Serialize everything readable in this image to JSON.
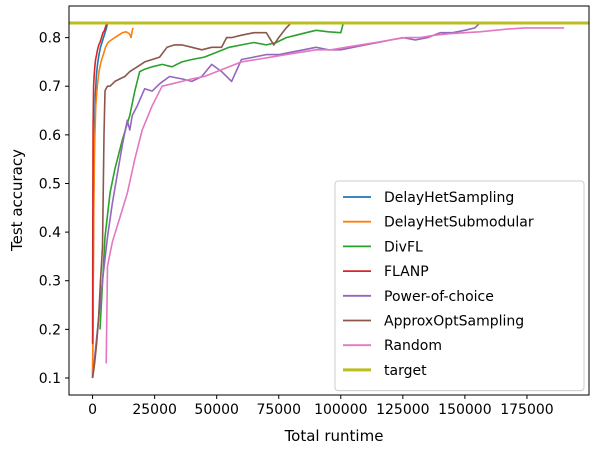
{
  "chart_data": {
    "type": "line",
    "xlabel": "Total runtime",
    "ylabel": "Test accuracy",
    "xlim": [
      -9500,
      200000
    ],
    "ylim": [
      0.065,
      0.865
    ],
    "x_ticks": [
      0,
      25000,
      50000,
      75000,
      100000,
      125000,
      150000,
      175000
    ],
    "x_tick_labels": [
      "0",
      "25000",
      "50000",
      "75000",
      "100000",
      "125000",
      "150000",
      "175000"
    ],
    "y_ticks": [
      0.1,
      0.2,
      0.3,
      0.4,
      0.5,
      0.6,
      0.7,
      0.8
    ],
    "y_tick_labels": [
      "0.1",
      "0.2",
      "0.3",
      "0.4",
      "0.5",
      "0.6",
      "0.7",
      "0.8"
    ],
    "grid": false,
    "legend_position": "lower-right",
    "target_line": {
      "name": "target",
      "y": 0.83,
      "color": "#bcbd22"
    },
    "series": [
      {
        "name": "DelayHetSampling",
        "color": "#1f77b4",
        "x": [
          0,
          150,
          300,
          500,
          800,
          1100,
          1500,
          2000,
          2600,
          3200,
          3800,
          4400,
          5000,
          5600,
          6000
        ],
        "y": [
          0.1,
          0.2,
          0.34,
          0.49,
          0.61,
          0.68,
          0.72,
          0.745,
          0.765,
          0.78,
          0.79,
          0.8,
          0.81,
          0.82,
          0.83
        ]
      },
      {
        "name": "DelayHetSubmodular",
        "color": "#ff7f0e",
        "x": [
          0,
          200,
          500,
          800,
          1300,
          1900,
          2600,
          3400,
          4300,
          5200,
          6200,
          7500,
          9000,
          10500,
          12000,
          13500,
          14800,
          15500,
          16000,
          16300
        ],
        "y": [
          0.1,
          0.25,
          0.45,
          0.58,
          0.66,
          0.7,
          0.73,
          0.75,
          0.765,
          0.78,
          0.79,
          0.795,
          0.8,
          0.805,
          0.81,
          0.812,
          0.808,
          0.8,
          0.815,
          0.82
        ]
      },
      {
        "name": "DivFL",
        "color": "#2ca02c",
        "x": [
          3000,
          5000,
          7000,
          9000,
          12000,
          15000,
          17000,
          19000,
          21000,
          24000,
          28000,
          32000,
          36000,
          40000,
          45000,
          50000,
          55000,
          60000,
          65000,
          70000,
          74000,
          78000,
          82000,
          86000,
          90000,
          95000,
          100000,
          101000
        ],
        "y": [
          0.2,
          0.39,
          0.48,
          0.53,
          0.59,
          0.64,
          0.69,
          0.73,
          0.735,
          0.74,
          0.745,
          0.74,
          0.75,
          0.755,
          0.76,
          0.77,
          0.78,
          0.785,
          0.79,
          0.785,
          0.79,
          0.8,
          0.805,
          0.81,
          0.815,
          0.812,
          0.81,
          0.83
        ]
      },
      {
        "name": "FLANP",
        "color": "#d62728",
        "x": [
          0,
          100,
          200,
          400,
          600,
          900,
          1200,
          1600,
          2000,
          2500,
          3000,
          3600,
          4200,
          4800,
          5400,
          6000
        ],
        "y": [
          0.17,
          0.4,
          0.62,
          0.7,
          0.72,
          0.74,
          0.755,
          0.765,
          0.775,
          0.785,
          0.79,
          0.8,
          0.81,
          0.815,
          0.825,
          0.83
        ]
      },
      {
        "name": "Power-of-choice",
        "color": "#9467bd",
        "x": [
          0,
          2000,
          4000,
          6000,
          8000,
          10000,
          12000,
          14000,
          15000,
          16000,
          18000,
          21000,
          24000,
          27000,
          31000,
          36000,
          40000,
          44000,
          48000,
          52000,
          56000,
          60000,
          65000,
          70000,
          75000,
          80000,
          85000,
          90000,
          95000,
          100000,
          105000,
          110000,
          115000,
          120000,
          125000,
          130000,
          135000,
          140000,
          145000,
          150000,
          154000,
          156000
        ],
        "y": [
          0.1,
          0.2,
          0.3,
          0.39,
          0.46,
          0.52,
          0.58,
          0.63,
          0.61,
          0.64,
          0.66,
          0.695,
          0.69,
          0.705,
          0.72,
          0.715,
          0.71,
          0.72,
          0.745,
          0.73,
          0.71,
          0.755,
          0.76,
          0.765,
          0.765,
          0.77,
          0.775,
          0.78,
          0.775,
          0.775,
          0.78,
          0.785,
          0.79,
          0.795,
          0.8,
          0.795,
          0.8,
          0.81,
          0.81,
          0.815,
          0.82,
          0.83
        ]
      },
      {
        "name": "ApproxOptSampling",
        "color": "#8c564b",
        "x": [
          0,
          800,
          1600,
          2400,
          3200,
          4000,
          4600,
          5000,
          5400,
          6000,
          7000,
          9000,
          11000,
          13000,
          15000,
          18000,
          21000,
          24000,
          27000,
          30000,
          33000,
          36000,
          40000,
          44000,
          48000,
          52000,
          54000,
          56000,
          60000,
          65000,
          70000,
          73000,
          75000,
          78000,
          80000
        ],
        "y": [
          0.1,
          0.13,
          0.17,
          0.22,
          0.3,
          0.37,
          0.6,
          0.69,
          0.695,
          0.7,
          0.7,
          0.71,
          0.715,
          0.72,
          0.73,
          0.74,
          0.75,
          0.755,
          0.76,
          0.78,
          0.785,
          0.785,
          0.78,
          0.775,
          0.78,
          0.78,
          0.8,
          0.8,
          0.805,
          0.81,
          0.81,
          0.785,
          0.8,
          0.82,
          0.83
        ]
      },
      {
        "name": "Random",
        "color": "#e377c2",
        "x": [
          5500,
          6000,
          8000,
          11000,
          14000,
          17000,
          20000,
          24000,
          28000,
          32000,
          36000,
          40000,
          45000,
          50000,
          55000,
          60000,
          66000,
          72000,
          78000,
          84000,
          90000,
          96000,
          102000,
          108000,
          114000,
          120000,
          126000,
          132000,
          138000,
          144000,
          150000,
          156000,
          162000,
          168000,
          174000,
          180000,
          186000,
          190000
        ],
        "y": [
          0.13,
          0.33,
          0.38,
          0.43,
          0.48,
          0.55,
          0.61,
          0.66,
          0.7,
          0.705,
          0.71,
          0.715,
          0.72,
          0.73,
          0.74,
          0.75,
          0.755,
          0.76,
          0.765,
          0.77,
          0.775,
          0.775,
          0.78,
          0.785,
          0.79,
          0.795,
          0.8,
          0.8,
          0.805,
          0.808,
          0.81,
          0.812,
          0.815,
          0.818,
          0.82,
          0.82,
          0.82,
          0.82
        ]
      }
    ]
  }
}
